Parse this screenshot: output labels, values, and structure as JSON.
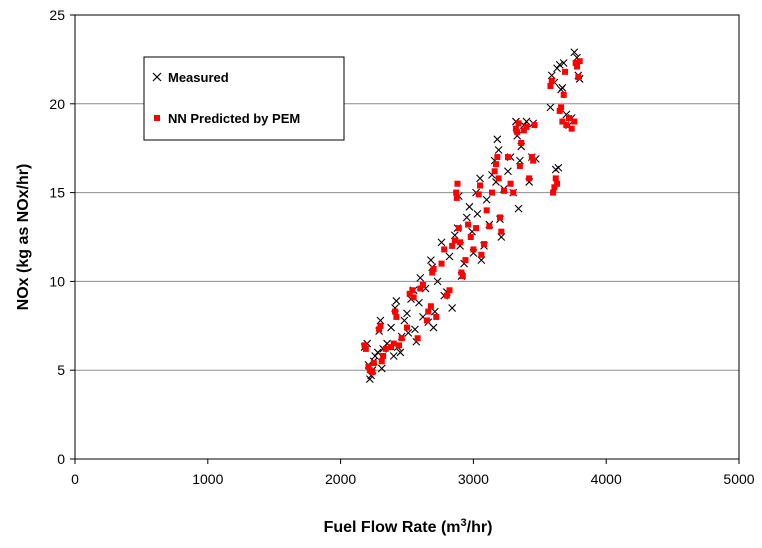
{
  "chart_data": {
    "type": "scatter",
    "title": "",
    "xlabel": "Fuel Flow Rate (m",
    "xlabel_sup": "3",
    "xlabel_tail": "/hr)",
    "ylabel": "NOx (kg as NOx/hr)",
    "xlim": [
      0,
      5000
    ],
    "ylim": [
      0,
      25
    ],
    "x_ticks": [
      0,
      1000,
      2000,
      3000,
      4000,
      5000
    ],
    "y_ticks": [
      0,
      5,
      10,
      15,
      20,
      25
    ],
    "grid": "horizontal",
    "legend_placement": "top-left",
    "series": [
      {
        "name": "Measured",
        "marker": "x",
        "color": "#000000",
        "points": [
          [
            2180,
            6.3
          ],
          [
            2200,
            6.5
          ],
          [
            2210,
            5.3
          ],
          [
            2220,
            4.5
          ],
          [
            2230,
            4.7
          ],
          [
            2240,
            5.0
          ],
          [
            2250,
            5.5
          ],
          [
            2260,
            5.8
          ],
          [
            2280,
            6.0
          ],
          [
            2290,
            7.2
          ],
          [
            2300,
            7.8
          ],
          [
            2310,
            5.1
          ],
          [
            2320,
            6.2
          ],
          [
            2350,
            6.5
          ],
          [
            2380,
            7.4
          ],
          [
            2400,
            5.8
          ],
          [
            2410,
            8.5
          ],
          [
            2420,
            8.9
          ],
          [
            2430,
            6.3
          ],
          [
            2450,
            6.0
          ],
          [
            2460,
            6.9
          ],
          [
            2480,
            7.8
          ],
          [
            2500,
            8.2
          ],
          [
            2510,
            7.1
          ],
          [
            2530,
            9.0
          ],
          [
            2550,
            9.5
          ],
          [
            2560,
            7.3
          ],
          [
            2570,
            6.6
          ],
          [
            2590,
            8.8
          ],
          [
            2600,
            10.2
          ],
          [
            2620,
            8.0
          ],
          [
            2640,
            9.6
          ],
          [
            2660,
            7.7
          ],
          [
            2680,
            11.2
          ],
          [
            2690,
            10.8
          ],
          [
            2700,
            7.4
          ],
          [
            2710,
            8.3
          ],
          [
            2730,
            10.0
          ],
          [
            2760,
            12.2
          ],
          [
            2780,
            9.2
          ],
          [
            2800,
            9.4
          ],
          [
            2820,
            11.4
          ],
          [
            2840,
            8.5
          ],
          [
            2860,
            12.6
          ],
          [
            2880,
            13.0
          ],
          [
            2890,
            14.8
          ],
          [
            2900,
            12.0
          ],
          [
            2910,
            10.3
          ],
          [
            2930,
            11.0
          ],
          [
            2950,
            13.6
          ],
          [
            2970,
            14.2
          ],
          [
            2990,
            12.8
          ],
          [
            3000,
            11.6
          ],
          [
            3020,
            15.0
          ],
          [
            3030,
            13.8
          ],
          [
            3050,
            15.8
          ],
          [
            3060,
            11.2
          ],
          [
            3080,
            12.0
          ],
          [
            3100,
            14.6
          ],
          [
            3120,
            13.2
          ],
          [
            3140,
            16.0
          ],
          [
            3160,
            16.8
          ],
          [
            3170,
            15.6
          ],
          [
            3180,
            18.0
          ],
          [
            3190,
            17.4
          ],
          [
            3200,
            13.5
          ],
          [
            3210,
            12.5
          ],
          [
            3230,
            15.2
          ],
          [
            3260,
            16.2
          ],
          [
            3280,
            17.0
          ],
          [
            3300,
            15.0
          ],
          [
            3320,
            19.0
          ],
          [
            3330,
            18.2
          ],
          [
            3340,
            14.1
          ],
          [
            3350,
            16.8
          ],
          [
            3360,
            17.6
          ],
          [
            3380,
            18.8
          ],
          [
            3400,
            19.0
          ],
          [
            3420,
            15.6
          ],
          [
            3440,
            17.0
          ],
          [
            3450,
            18.9
          ],
          [
            3470,
            16.9
          ],
          [
            3580,
            19.8
          ],
          [
            3590,
            21.6
          ],
          [
            3610,
            21.2
          ],
          [
            3630,
            22.0
          ],
          [
            3620,
            16.3
          ],
          [
            3640,
            16.4
          ],
          [
            3650,
            22.2
          ],
          [
            3660,
            20.8
          ],
          [
            3670,
            20.9
          ],
          [
            3680,
            22.3
          ],
          [
            3700,
            19.4
          ],
          [
            3720,
            18.8
          ],
          [
            3740,
            19.2
          ],
          [
            3760,
            22.9
          ],
          [
            3780,
            22.6
          ],
          [
            3790,
            21.6
          ],
          [
            3800,
            21.4
          ]
        ]
      },
      {
        "name": "NN Predicted by PEM",
        "marker": "square",
        "color": "#ff0000",
        "points": [
          [
            2180,
            6.4
          ],
          [
            2190,
            6.2
          ],
          [
            2210,
            5.2
          ],
          [
            2220,
            5.0
          ],
          [
            2240,
            4.9
          ],
          [
            2250,
            5.4
          ],
          [
            2290,
            7.3
          ],
          [
            2300,
            7.5
          ],
          [
            2310,
            5.5
          ],
          [
            2320,
            5.8
          ],
          [
            2340,
            6.2
          ],
          [
            2380,
            6.3
          ],
          [
            2400,
            6.5
          ],
          [
            2410,
            8.3
          ],
          [
            2420,
            8.0
          ],
          [
            2440,
            6.4
          ],
          [
            2460,
            6.8
          ],
          [
            2500,
            7.4
          ],
          [
            2520,
            9.3
          ],
          [
            2540,
            9.5
          ],
          [
            2550,
            9.1
          ],
          [
            2580,
            6.8
          ],
          [
            2600,
            9.6
          ],
          [
            2620,
            9.8
          ],
          [
            2650,
            7.8
          ],
          [
            2660,
            8.3
          ],
          [
            2680,
            8.6
          ],
          [
            2690,
            10.5
          ],
          [
            2700,
            10.7
          ],
          [
            2720,
            8.0
          ],
          [
            2760,
            11.0
          ],
          [
            2780,
            11.8
          ],
          [
            2800,
            9.2
          ],
          [
            2820,
            9.5
          ],
          [
            2840,
            12.0
          ],
          [
            2860,
            12.3
          ],
          [
            2870,
            15.0
          ],
          [
            2875,
            14.7
          ],
          [
            2880,
            15.5
          ],
          [
            2890,
            13.0
          ],
          [
            2900,
            12.2
          ],
          [
            2910,
            10.5
          ],
          [
            2920,
            10.3
          ],
          [
            2940,
            11.2
          ],
          [
            2960,
            13.2
          ],
          [
            2980,
            12.5
          ],
          [
            3000,
            11.8
          ],
          [
            3020,
            13.0
          ],
          [
            3040,
            14.9
          ],
          [
            3050,
            15.4
          ],
          [
            3060,
            11.5
          ],
          [
            3080,
            12.1
          ],
          [
            3100,
            14.0
          ],
          [
            3120,
            13.1
          ],
          [
            3140,
            15.0
          ],
          [
            3160,
            16.2
          ],
          [
            3170,
            16.6
          ],
          [
            3180,
            17.0
          ],
          [
            3190,
            15.8
          ],
          [
            3200,
            13.6
          ],
          [
            3210,
            12.8
          ],
          [
            3230,
            15.1
          ],
          [
            3260,
            17.0
          ],
          [
            3280,
            15.5
          ],
          [
            3300,
            15.0
          ],
          [
            3320,
            18.6
          ],
          [
            3330,
            18.4
          ],
          [
            3340,
            18.9
          ],
          [
            3350,
            16.5
          ],
          [
            3360,
            17.8
          ],
          [
            3380,
            18.5
          ],
          [
            3400,
            18.7
          ],
          [
            3420,
            15.8
          ],
          [
            3440,
            17.0
          ],
          [
            3450,
            16.8
          ],
          [
            3460,
            18.8
          ],
          [
            3580,
            21.0
          ],
          [
            3590,
            21.3
          ],
          [
            3600,
            15.0
          ],
          [
            3610,
            15.3
          ],
          [
            3620,
            15.8
          ],
          [
            3630,
            15.5
          ],
          [
            3650,
            19.6
          ],
          [
            3660,
            19.8
          ],
          [
            3670,
            19.0
          ],
          [
            3680,
            20.5
          ],
          [
            3690,
            21.8
          ],
          [
            3700,
            18.8
          ],
          [
            3720,
            19.2
          ],
          [
            3740,
            18.6
          ],
          [
            3760,
            19.0
          ],
          [
            3770,
            22.3
          ],
          [
            3780,
            22.1
          ],
          [
            3790,
            21.5
          ],
          [
            3800,
            22.4
          ]
        ]
      }
    ]
  }
}
